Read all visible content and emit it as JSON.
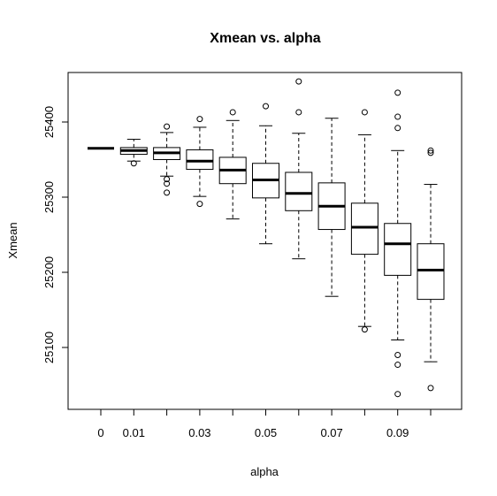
{
  "chart_data": {
    "type": "boxplot",
    "title": "Xmean vs. alpha",
    "xlabel": "alpha",
    "ylabel": "Xmean",
    "categories": [
      "0",
      "0.01",
      "0.02",
      "0.03",
      "0.04",
      "0.05",
      "0.06",
      "0.07",
      "0.08",
      "0.09",
      "0.1"
    ],
    "x_tick_labels": [
      "0",
      "0.01",
      "0.03",
      "0.05",
      "0.07",
      "0.09"
    ],
    "y_ticks": [
      25100,
      25200,
      25300,
      25400
    ],
    "ylim": [
      25025,
      25475
    ],
    "grid": false,
    "legend": "none",
    "colors": {
      "box_fill": "#ffffff",
      "stroke": "#000000",
      "median": "#000000"
    },
    "boxes": [
      {
        "category": "0",
        "lower_whisker": 25365,
        "q1": 25365,
        "median": 25365,
        "q3": 25365,
        "upper_whisker": 25365,
        "outliers": []
      },
      {
        "category": "0.01",
        "lower_whisker": 25348,
        "q1": 25357,
        "median": 25362,
        "q3": 25366,
        "upper_whisker": 25377,
        "outliers": [
          25345
        ]
      },
      {
        "category": "0.02",
        "lower_whisker": 25328,
        "q1": 25350,
        "median": 25359,
        "q3": 25366,
        "upper_whisker": 25386,
        "outliers": [
          25394,
          25324,
          25318,
          25306
        ]
      },
      {
        "category": "0.03",
        "lower_whisker": 25301,
        "q1": 25337,
        "median": 25348,
        "q3": 25363,
        "upper_whisker": 25393,
        "outliers": [
          25404,
          25291
        ]
      },
      {
        "category": "0.04",
        "lower_whisker": 25271,
        "q1": 25318,
        "median": 25336,
        "q3": 25353,
        "upper_whisker": 25402,
        "outliers": [
          25413
        ]
      },
      {
        "category": "0.05",
        "lower_whisker": 25238,
        "q1": 25299,
        "median": 25323,
        "q3": 25345,
        "upper_whisker": 25395,
        "outliers": [
          25421
        ]
      },
      {
        "category": "0.06",
        "lower_whisker": 25218,
        "q1": 25282,
        "median": 25305,
        "q3": 25333,
        "upper_whisker": 25385,
        "outliers": [
          25454,
          25413
        ]
      },
      {
        "category": "0.07",
        "lower_whisker": 25168,
        "q1": 25257,
        "median": 25288,
        "q3": 25319,
        "upper_whisker": 25405,
        "outliers": []
      },
      {
        "category": "0.08",
        "lower_whisker": 25128,
        "q1": 25224,
        "median": 25260,
        "q3": 25292,
        "upper_whisker": 25383,
        "outliers": [
          25413,
          25124
        ]
      },
      {
        "category": "0.09",
        "lower_whisker": 25110,
        "q1": 25196,
        "median": 25238,
        "q3": 25265,
        "upper_whisker": 25362,
        "outliers": [
          25439,
          25407,
          25392,
          25090,
          25077,
          25038
        ]
      },
      {
        "category": "0.1",
        "lower_whisker": 25081,
        "q1": 25164,
        "median": 25203,
        "q3": 25238,
        "upper_whisker": 25317,
        "outliers": [
          25362,
          25359,
          25046
        ]
      }
    ]
  }
}
